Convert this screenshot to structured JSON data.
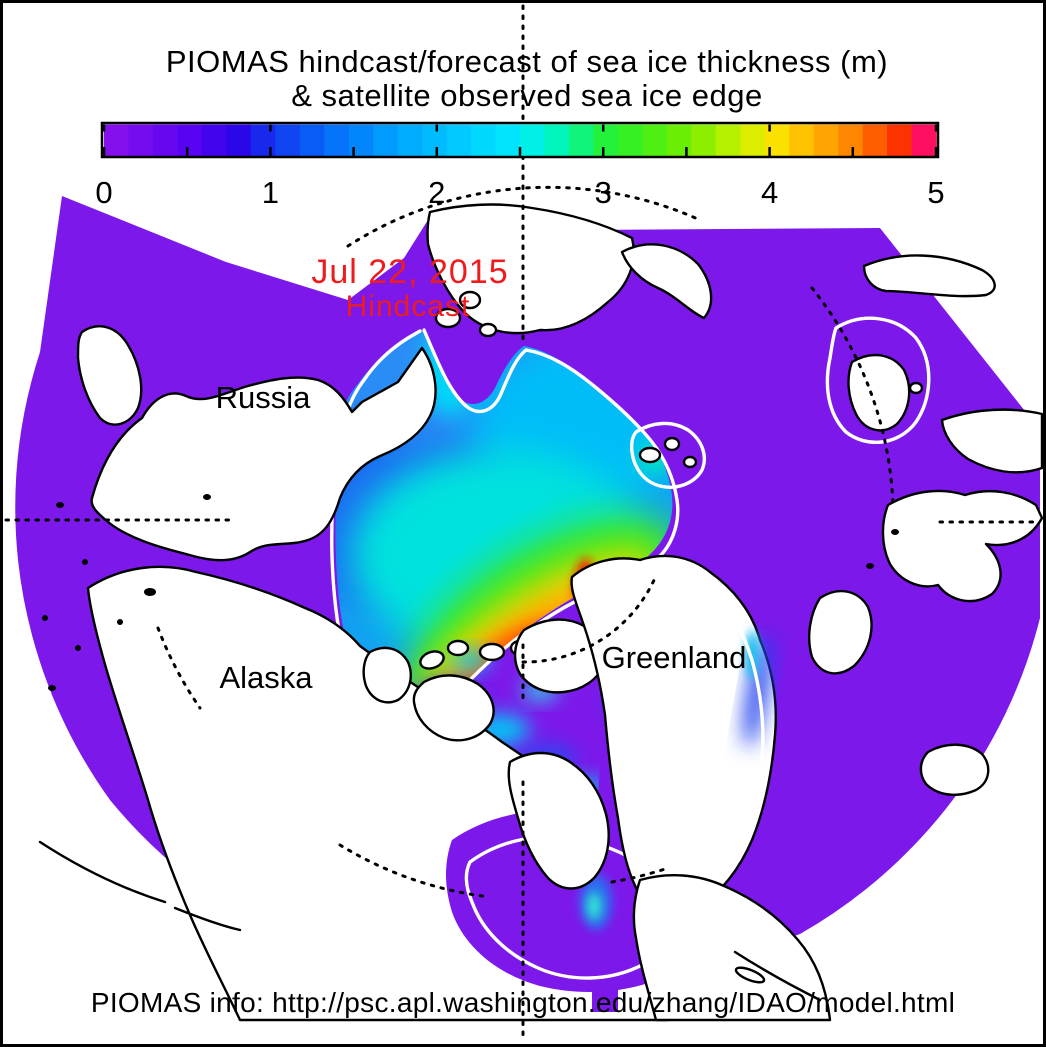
{
  "figure": {
    "title_line1": "PIOMAS hindcast/forecast of sea ice thickness (m)",
    "title_line2": "& satellite observed sea ice edge",
    "footer": "PIOMAS info: http://psc.apl.washington.edu/zhang/IDAO/model.html"
  },
  "annotation": {
    "date": "Jul 22, 2015",
    "mode": "Hindcast",
    "color": "#ee1c1c"
  },
  "map_labels": [
    {
      "name": "russia",
      "text": "Russia"
    },
    {
      "name": "alaska",
      "text": "Alaska"
    },
    {
      "name": "greenland",
      "text": "Greenland"
    }
  ],
  "colorbar": {
    "unit": "m",
    "min": 0,
    "max": 5,
    "tick_labels": [
      "0",
      "1",
      "2",
      "3",
      "4",
      "5"
    ],
    "segments": 34,
    "stops": [
      [
        0.0,
        "#8a12ec"
      ],
      [
        0.5,
        "#5a03f2"
      ],
      [
        0.85,
        "#2506e8"
      ],
      [
        1.0,
        "#1336ee"
      ],
      [
        1.4,
        "#0573fa"
      ],
      [
        1.8,
        "#00a8ff"
      ],
      [
        2.15,
        "#00ccff"
      ],
      [
        2.5,
        "#00ecfc"
      ],
      [
        2.75,
        "#00f6b4"
      ],
      [
        3.0,
        "#22f23c"
      ],
      [
        3.2,
        "#3cf01e"
      ],
      [
        3.5,
        "#72ee00"
      ],
      [
        3.8,
        "#c2f000"
      ],
      [
        4.0,
        "#f8ea00"
      ],
      [
        4.2,
        "#ffc000"
      ],
      [
        4.5,
        "#ff8400"
      ],
      [
        4.75,
        "#ff3c00"
      ],
      [
        4.9,
        "#ee0a00"
      ],
      [
        5.0,
        "#ff0f62"
      ]
    ]
  },
  "colors": {
    "background": "#ffffff",
    "frame": "#000000",
    "ocean": "#7d18ea",
    "land": "#ffffff",
    "coastline": "#000000",
    "ice_edge_contour": "#ffffff",
    "graticule": "#000000",
    "ice_pack_base": "#14a0f2"
  }
}
